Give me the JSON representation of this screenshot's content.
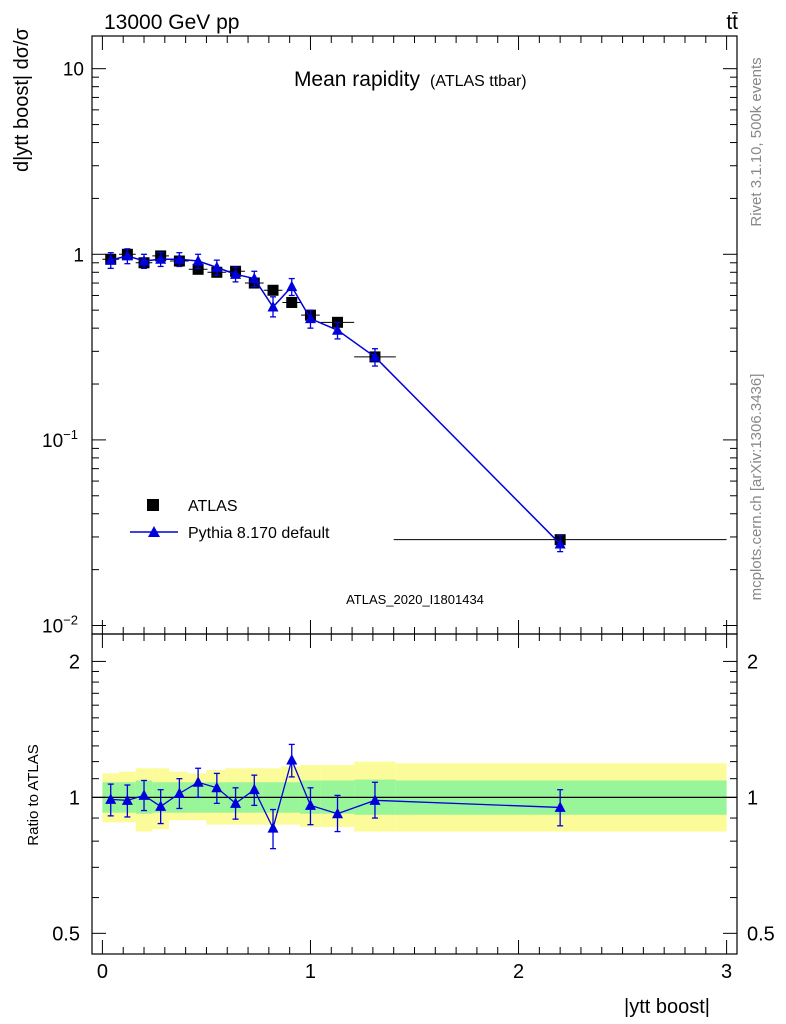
{
  "header": {
    "left": "13000 GeV pp",
    "right": "tt̄"
  },
  "side_labels": {
    "top": "Rivet 3.1.10,  500k events",
    "bottom": "mcplots.cern.ch [arXiv:1306.3436]"
  },
  "chart_data": [
    {
      "type": "scatter",
      "panel": "main",
      "title": "Mean rapidity",
      "subtitle": "(ATLAS ttbar)",
      "watermark": "ATLAS_2020_I1801434",
      "ylabel": "d|ytt boost| dσ/σ",
      "yscale": "log",
      "ylim": [
        0.009,
        15
      ],
      "xlim": [
        -0.05,
        3.05
      ],
      "y_ticks": [
        {
          "value": 10,
          "base": "10",
          "exp": ""
        },
        {
          "value": 1,
          "base": "1",
          "exp": ""
        },
        {
          "value": 0.1,
          "base": "10",
          "exp": "−1"
        },
        {
          "value": 0.01,
          "base": "10",
          "exp": "−2"
        }
      ],
      "legend": {
        "position": "bottom-left",
        "entries": [
          "ATLAS",
          "Pythia 8.170 default"
        ]
      },
      "series": [
        {
          "name": "ATLAS",
          "marker": "square",
          "color": "#000000",
          "x": [
            0.04,
            0.12,
            0.2,
            0.28,
            0.37,
            0.46,
            0.55,
            0.64,
            0.73,
            0.82,
            0.91,
            1.0,
            1.13,
            1.31,
            2.2
          ],
          "xerr": [
            0.04,
            0.04,
            0.04,
            0.04,
            0.045,
            0.045,
            0.045,
            0.045,
            0.045,
            0.045,
            0.045,
            0.045,
            0.08,
            0.1,
            0.8
          ],
          "y": [
            0.94,
            1.0,
            0.9,
            0.98,
            0.92,
            0.83,
            0.8,
            0.81,
            0.7,
            0.64,
            0.55,
            0.47,
            0.43,
            0.28,
            0.029
          ]
        },
        {
          "name": "Pythia 8.170 default",
          "marker": "triangle",
          "color": "#0000dd",
          "x": [
            0.04,
            0.12,
            0.2,
            0.28,
            0.37,
            0.46,
            0.55,
            0.64,
            0.73,
            0.82,
            0.91,
            1.0,
            1.13,
            1.31,
            2.2
          ],
          "y": [
            0.93,
            0.98,
            0.92,
            0.94,
            0.94,
            0.92,
            0.85,
            0.78,
            0.74,
            0.52,
            0.67,
            0.45,
            0.39,
            0.28,
            0.0275
          ],
          "y_lo": [
            0.84,
            0.89,
            0.84,
            0.86,
            0.86,
            0.84,
            0.77,
            0.71,
            0.67,
            0.46,
            0.6,
            0.4,
            0.35,
            0.25,
            0.025
          ],
          "y_hi": [
            1.02,
            1.07,
            1.0,
            1.02,
            1.02,
            1.0,
            0.93,
            0.85,
            0.81,
            0.59,
            0.74,
            0.5,
            0.43,
            0.31,
            0.0305
          ]
        }
      ]
    },
    {
      "type": "scatter",
      "panel": "ratio",
      "ylabel": "Ratio to ATLAS",
      "xlabel": "|ytt boost|",
      "xlim": [
        -0.05,
        3.05
      ],
      "ylim": [
        0.45,
        2.3
      ],
      "yscale": "log",
      "x_ticks": [
        0,
        1,
        2,
        3
      ],
      "x_tick_labels": [
        "0",
        "1",
        "2",
        "3"
      ],
      "y_ticks": [
        0.5,
        1,
        2
      ],
      "y_tick_labels": [
        "0.5",
        "1",
        "2"
      ],
      "bands": [
        {
          "x_lo": 0.0,
          "x_hi": 0.08,
          "y_lo": 0.925,
          "y_hi": 1.08,
          "y_lo2": 0.88,
          "y_hi2": 1.13
        },
        {
          "x_lo": 0.08,
          "x_hi": 0.16,
          "y_lo": 0.925,
          "y_hi": 1.08,
          "y_lo2": 0.88,
          "y_hi2": 1.14
        },
        {
          "x_lo": 0.16,
          "x_hi": 0.24,
          "y_lo": 0.92,
          "y_hi": 1.09,
          "y_lo2": 0.84,
          "y_hi2": 1.16
        },
        {
          "x_lo": 0.24,
          "x_hi": 0.32,
          "y_lo": 0.925,
          "y_hi": 1.08,
          "y_lo2": 0.85,
          "y_hi2": 1.16
        },
        {
          "x_lo": 0.32,
          "x_hi": 0.41,
          "y_lo": 0.925,
          "y_hi": 1.08,
          "y_lo2": 0.89,
          "y_hi2": 1.14
        },
        {
          "x_lo": 0.41,
          "x_hi": 0.5,
          "y_lo": 0.925,
          "y_hi": 1.08,
          "y_lo2": 0.89,
          "y_hi2": 1.13
        },
        {
          "x_lo": 0.5,
          "x_hi": 0.59,
          "y_lo": 0.925,
          "y_hi": 1.08,
          "y_lo2": 0.87,
          "y_hi2": 1.15
        },
        {
          "x_lo": 0.59,
          "x_hi": 0.68,
          "y_lo": 0.925,
          "y_hi": 1.08,
          "y_lo2": 0.87,
          "y_hi2": 1.16
        },
        {
          "x_lo": 0.68,
          "x_hi": 0.77,
          "y_lo": 0.925,
          "y_hi": 1.08,
          "y_lo2": 0.87,
          "y_hi2": 1.16
        },
        {
          "x_lo": 0.77,
          "x_hi": 0.86,
          "y_lo": 0.925,
          "y_hi": 1.08,
          "y_lo2": 0.87,
          "y_hi2": 1.16
        },
        {
          "x_lo": 0.86,
          "x_hi": 0.95,
          "y_lo": 0.925,
          "y_hi": 1.08,
          "y_lo2": 0.87,
          "y_hi2": 1.17
        },
        {
          "x_lo": 0.95,
          "x_hi": 1.05,
          "y_lo": 0.92,
          "y_hi": 1.09,
          "y_lo2": 0.86,
          "y_hi2": 1.18
        },
        {
          "x_lo": 1.05,
          "x_hi": 1.21,
          "y_lo": 0.92,
          "y_hi": 1.09,
          "y_lo2": 0.86,
          "y_hi2": 1.18
        },
        {
          "x_lo": 1.21,
          "x_hi": 1.41,
          "y_lo": 0.915,
          "y_hi": 1.095,
          "y_lo2": 0.84,
          "y_hi2": 1.2
        },
        {
          "x_lo": 1.41,
          "x_hi": 3.0,
          "y_lo": 0.915,
          "y_hi": 1.09,
          "y_lo2": 0.84,
          "y_hi2": 1.19
        }
      ],
      "series": [
        {
          "name": "Pythia 8.170 default",
          "marker": "triangle",
          "color": "#0000dd",
          "x": [
            0.04,
            0.12,
            0.2,
            0.28,
            0.37,
            0.46,
            0.55,
            0.64,
            0.73,
            0.82,
            0.91,
            1.0,
            1.13,
            1.31,
            2.2
          ],
          "y": [
            0.99,
            0.985,
            1.01,
            0.955,
            1.02,
            1.08,
            1.05,
            0.97,
            1.04,
            0.855,
            1.21,
            0.96,
            0.92,
            0.985,
            0.95
          ],
          "y_lo": [
            0.91,
            0.905,
            0.935,
            0.875,
            0.945,
            1.0,
            0.97,
            0.895,
            0.96,
            0.77,
            1.11,
            0.87,
            0.84,
            0.9,
            0.865
          ],
          "y_hi": [
            1.07,
            1.065,
            1.09,
            1.04,
            1.1,
            1.16,
            1.13,
            1.05,
            1.12,
            0.94,
            1.31,
            1.05,
            1.01,
            1.08,
            1.04
          ]
        }
      ],
      "reference_line": 1
    }
  ],
  "colors": {
    "data": "#000000",
    "mc": "#0000dd",
    "band_inner": "#99f599",
    "band_outer": "#fbfb99",
    "side_text": "#888888"
  }
}
